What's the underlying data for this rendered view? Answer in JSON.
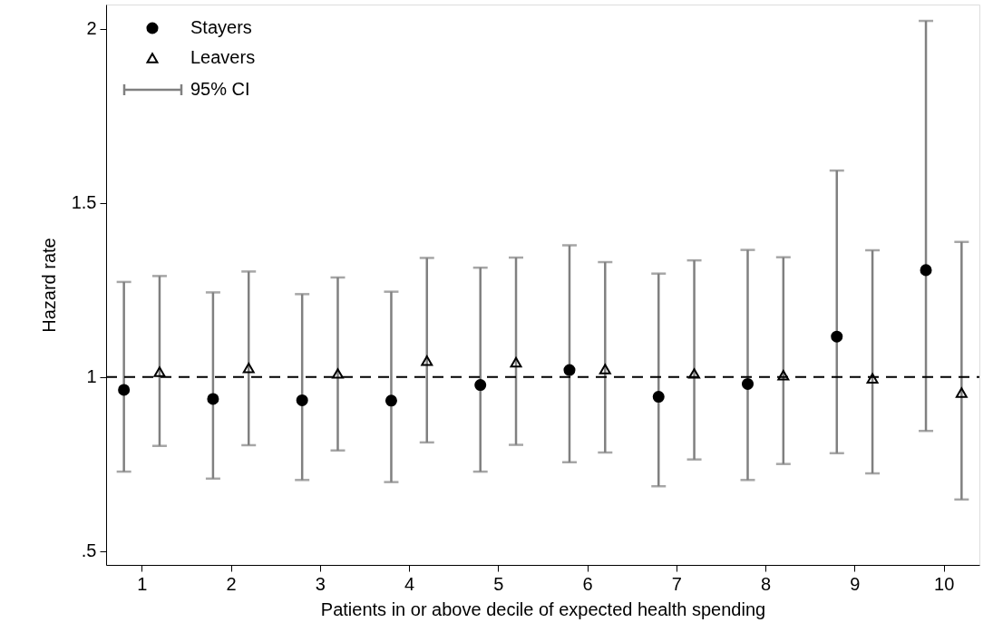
{
  "chart_data": {
    "type": "scatter",
    "xlabel": "Patients in or above decile of expected health spending",
    "ylabel": "Hazard rate",
    "xlim": [
      0.6,
      10.4
    ],
    "xticks": [
      1,
      2,
      3,
      4,
      5,
      6,
      7,
      8,
      9,
      10
    ],
    "ylim": [
      0.46,
      2.07
    ],
    "yticks": [
      {
        "value": 0.5,
        "label": ".5"
      },
      1,
      1.5,
      2
    ],
    "grid": false,
    "legend": "top left",
    "annotations": [
      "95% CI"
    ],
    "ref_lines": [
      {
        "axis": "y",
        "value": 1,
        "color": "#000000",
        "line_style": "dashed"
      }
    ],
    "series": [
      {
        "name": "Stayers",
        "color": "#000000",
        "marker": "circle",
        "x": [
          0.8,
          1.8,
          2.8,
          3.8,
          4.8,
          5.8,
          6.8,
          7.8,
          8.8,
          9.8
        ],
        "values": [
          0.963,
          0.937,
          0.933,
          0.932,
          0.977,
          1.02,
          0.943,
          0.98,
          1.116,
          1.307
        ],
        "errors": [
          [
            0.728,
            1.273
          ],
          [
            0.708,
            1.243
          ],
          [
            0.704,
            1.238
          ],
          [
            0.698,
            1.245
          ],
          [
            0.728,
            1.314
          ],
          [
            0.755,
            1.378
          ],
          [
            0.686,
            1.297
          ],
          [
            0.704,
            1.365
          ],
          [
            0.781,
            1.593
          ],
          [
            0.845,
            2.023
          ]
        ]
      },
      {
        "name": "Leavers",
        "color": "#000000",
        "marker": "triangle",
        "x": [
          1.2,
          2.2,
          3.2,
          4.2,
          5.2,
          6.2,
          7.2,
          8.2,
          9.2,
          10.2
        ],
        "values": [
          1.015,
          1.026,
          1.01,
          1.047,
          1.042,
          1.023,
          1.01,
          1.005,
          0.996,
          0.955
        ],
        "errors": [
          [
            0.802,
            1.29
          ],
          [
            0.804,
            1.303
          ],
          [
            0.789,
            1.286
          ],
          [
            0.812,
            1.342
          ],
          [
            0.805,
            1.343
          ],
          [
            0.783,
            1.33
          ],
          [
            0.763,
            1.335
          ],
          [
            0.75,
            1.344
          ],
          [
            0.723,
            1.364
          ],
          [
            0.648,
            1.388
          ]
        ]
      }
    ]
  }
}
